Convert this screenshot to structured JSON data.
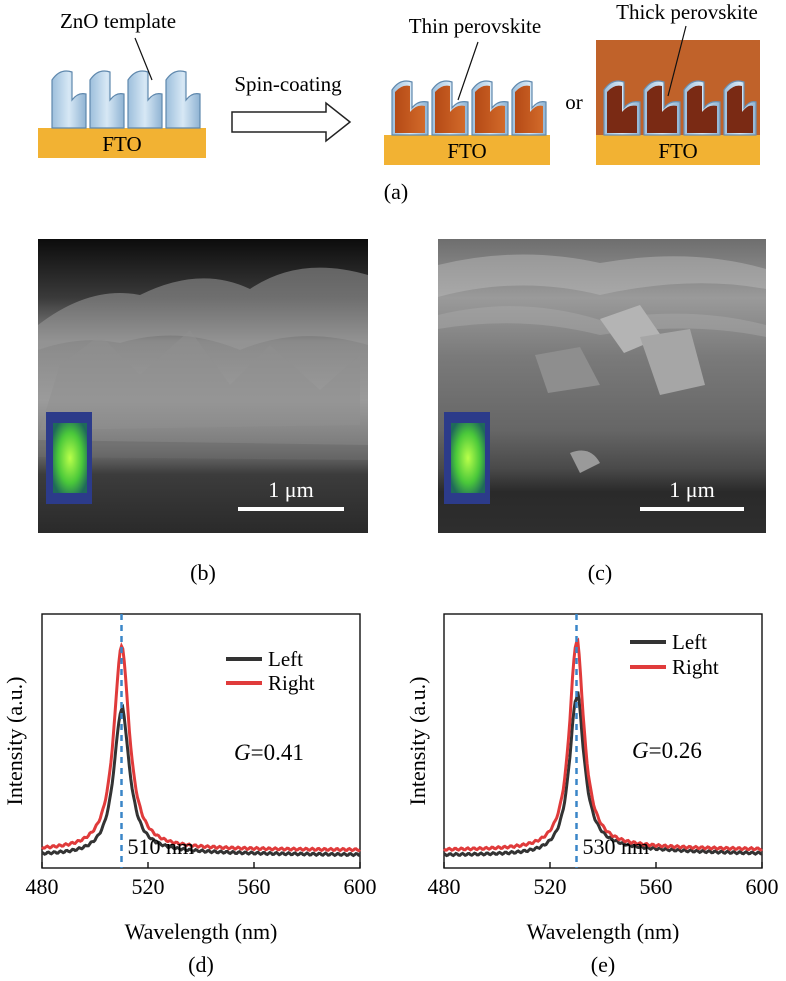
{
  "schematic": {
    "zno_label": "ZnO template",
    "fto_label": "FTO",
    "process_label": "Spin-coating",
    "thin_label": "Thin perovskite",
    "or_label": "or",
    "thick_label": "Thick perovskite",
    "panel_label": "(a)",
    "colors": {
      "fto": "#f2b233",
      "zno": "#bcd6ea",
      "perovskite_thin": "#c65a1e",
      "perovskite_thick": "#c0622a",
      "perovskite_dark": "#7a2a14"
    }
  },
  "sem_images": [
    {
      "scale_label": "1 μm",
      "panel_label": "(b)"
    },
    {
      "scale_label": "1 μm",
      "panel_label": "(c)"
    }
  ],
  "chart_data": [
    {
      "type": "line",
      "panel_label": "(d)",
      "xlabel": "Wavelength (nm)",
      "ylabel": "Intensity (a.u.)",
      "xlim": [
        480,
        600
      ],
      "xticks": [
        480,
        520,
        560,
        600
      ],
      "series": [
        {
          "name": "Left",
          "color": "#333333",
          "peak": 510,
          "height": 0.62,
          "baseline": 0.05,
          "width": 7,
          "tail": 0.02,
          "x": [
            480,
            490,
            500,
            505,
            508,
            510,
            512,
            515,
            520,
            530,
            540,
            560,
            580,
            600
          ],
          "y": [
            0.06,
            0.08,
            0.16,
            0.36,
            0.56,
            0.62,
            0.57,
            0.39,
            0.21,
            0.1,
            0.08,
            0.07,
            0.07,
            0.07
          ]
        },
        {
          "name": "Right",
          "color": "#e03b3b",
          "peak": 510,
          "height": 0.87,
          "baseline": 0.07,
          "width": 7,
          "tail": 0.01,
          "x": [
            480,
            490,
            500,
            505,
            508,
            510,
            512,
            515,
            520,
            530,
            540,
            560,
            580,
            600
          ],
          "y": [
            0.08,
            0.1,
            0.22,
            0.52,
            0.8,
            0.87,
            0.82,
            0.55,
            0.29,
            0.13,
            0.1,
            0.08,
            0.08,
            0.07
          ]
        }
      ],
      "peak_line": {
        "x": 510,
        "label": "510 nm",
        "color": "#3a86c8"
      },
      "annotation": {
        "symbol": "G",
        "text": "=0.41"
      }
    },
    {
      "type": "line",
      "panel_label": "(e)",
      "xlabel": "Wavelength (nm)",
      "ylabel": "Intensity (a.u.)",
      "xlim": [
        480,
        600
      ],
      "xticks": [
        480,
        520,
        560,
        600
      ],
      "series": [
        {
          "name": "Left",
          "color": "#333333",
          "peak": 530,
          "height": 0.67,
          "baseline": 0.05,
          "width": 6.5,
          "tail": 0.04,
          "x": [
            480,
            500,
            515,
            522,
            527,
            530,
            533,
            538,
            545,
            560,
            580,
            600
          ],
          "y": [
            0.05,
            0.06,
            0.14,
            0.36,
            0.6,
            0.67,
            0.61,
            0.4,
            0.21,
            0.11,
            0.09,
            0.08
          ]
        },
        {
          "name": "Right",
          "color": "#e03b3b",
          "peak": 530,
          "height": 0.89,
          "baseline": 0.07,
          "width": 6.5,
          "tail": 0.02,
          "x": [
            480,
            500,
            515,
            522,
            527,
            530,
            533,
            538,
            545,
            560,
            580,
            600
          ],
          "y": [
            0.07,
            0.08,
            0.19,
            0.48,
            0.8,
            0.89,
            0.82,
            0.54,
            0.27,
            0.13,
            0.1,
            0.08
          ]
        }
      ],
      "peak_line": {
        "x": 530,
        "label": "530 nm",
        "color": "#3a86c8"
      },
      "annotation": {
        "symbol": "G",
        "text": "=0.26"
      }
    }
  ]
}
